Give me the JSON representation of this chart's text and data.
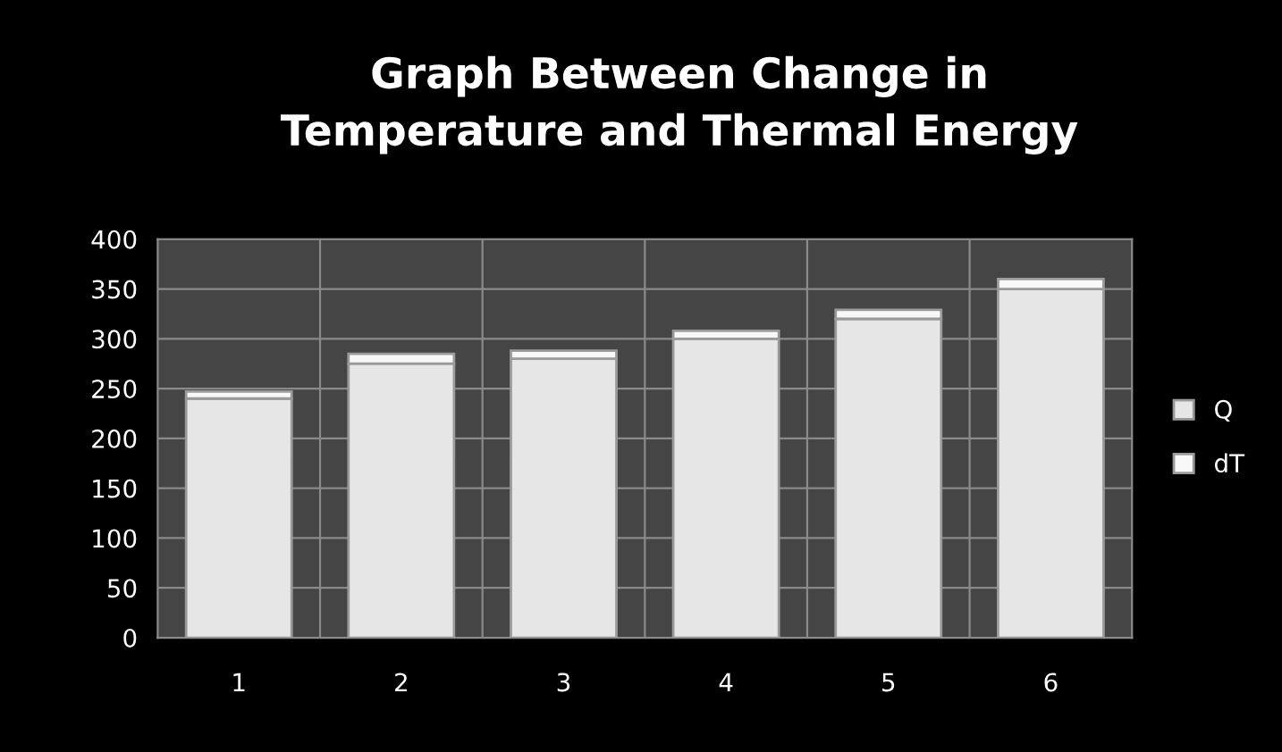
{
  "chart_data": {
    "type": "bar",
    "title": "Graph Between Change in\nTemperature and Thermal Energy",
    "categories": [
      "1",
      "2",
      "3",
      "4",
      "5",
      "6"
    ],
    "stacked": true,
    "series": [
      {
        "name": "Q",
        "color": "#e6e6e6",
        "values": [
          240,
          275,
          280,
          300,
          320,
          350
        ]
      },
      {
        "name": "dT",
        "color": "#f8f8f8",
        "values": [
          7,
          10,
          8,
          8,
          9,
          10
        ]
      }
    ],
    "ylim": [
      0,
      400
    ],
    "yticks": [
      0,
      50,
      100,
      150,
      200,
      250,
      300,
      350,
      400
    ],
    "grid": true,
    "legend": "right"
  }
}
